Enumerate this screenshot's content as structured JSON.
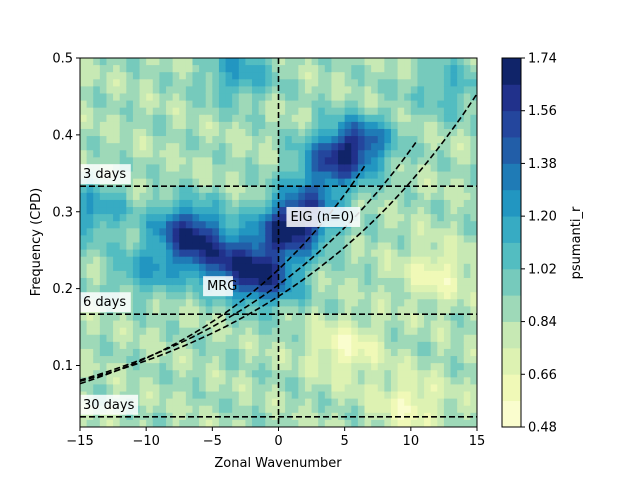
{
  "chart_data": {
    "type": "heatmap",
    "title": "",
    "xlabel": "Zonal Wavenumber",
    "ylabel": "Frequency (CPD)",
    "xlim": [
      -15,
      15
    ],
    "ylim": [
      0.02,
      0.5
    ],
    "xticks": [
      -15,
      -10,
      -5,
      0,
      5,
      10,
      15
    ],
    "xtick_labels": [
      "−15",
      "−10",
      "−5",
      "0",
      "5",
      "10",
      "15"
    ],
    "yticks": [
      0.1,
      0.2,
      0.3,
      0.4,
      0.5
    ],
    "ytick_labels": [
      "0.1",
      "0.2",
      "0.3",
      "0.4",
      "0.5"
    ],
    "colorbar": {
      "label": "psumanti_r",
      "min": 0.48,
      "max": 1.74,
      "ticks": [
        0.48,
        0.66,
        0.84,
        1.02,
        1.2,
        1.38,
        1.56,
        1.74
      ],
      "tick_labels": [
        "0.48",
        "0.66",
        "0.84",
        "1.02",
        "1.20",
        "1.38",
        "1.56",
        "1.74"
      ],
      "colormap": "YlGnBu"
    },
    "grid": false,
    "background_level": 0.86,
    "hotspots": [
      {
        "k": -14,
        "f": 0.3,
        "value": 1.2
      },
      {
        "k": -7,
        "f": 0.28,
        "value": 1.4
      },
      {
        "k": -6,
        "f": 0.25,
        "value": 1.3
      },
      {
        "k": -3,
        "f": 0.23,
        "value": 1.32
      },
      {
        "k": -1,
        "f": 0.21,
        "value": 1.42
      },
      {
        "k": 0.5,
        "f": 0.27,
        "value": 1.45
      },
      {
        "k": 2,
        "f": 0.3,
        "value": 1.42
      },
      {
        "k": 4,
        "f": 0.36,
        "value": 1.4
      },
      {
        "k": 6,
        "f": 0.39,
        "value": 1.45
      },
      {
        "k": -10,
        "f": 0.22,
        "value": 1.15
      },
      {
        "k": -3,
        "f": 0.48,
        "value": 1.18
      },
      {
        "k": 13,
        "f": 0.46,
        "value": 1.1
      },
      {
        "k": 10,
        "f": 0.05,
        "value": 0.6
      },
      {
        "k": 5,
        "f": 0.12,
        "value": 0.6
      },
      {
        "k": 12,
        "f": 0.22,
        "value": 0.62
      }
    ],
    "reference_lines": {
      "vertical": [
        {
          "k": 0
        }
      ],
      "horizontal": [
        {
          "f": 0.3333,
          "label": "3 days"
        },
        {
          "f": 0.1667,
          "label": "6 days"
        },
        {
          "f": 0.0333,
          "label": "30 days"
        }
      ],
      "dispersion_curves": [
        {
          "f_at_k0": 0.225,
          "growth": 0.072,
          "k_range": [
            -15,
            6.5
          ]
        },
        {
          "f_at_k0": 0.205,
          "growth": 0.062,
          "k_range": [
            -15,
            10.6
          ]
        },
        {
          "f_at_k0": 0.19,
          "growth": 0.058,
          "k_range": [
            -15,
            15
          ]
        }
      ]
    },
    "annotations": [
      {
        "text": "EIG (n=0)",
        "k": 0.6,
        "f": 0.288
      },
      {
        "text": "MRG",
        "k": -5.7,
        "f": 0.198
      }
    ]
  }
}
